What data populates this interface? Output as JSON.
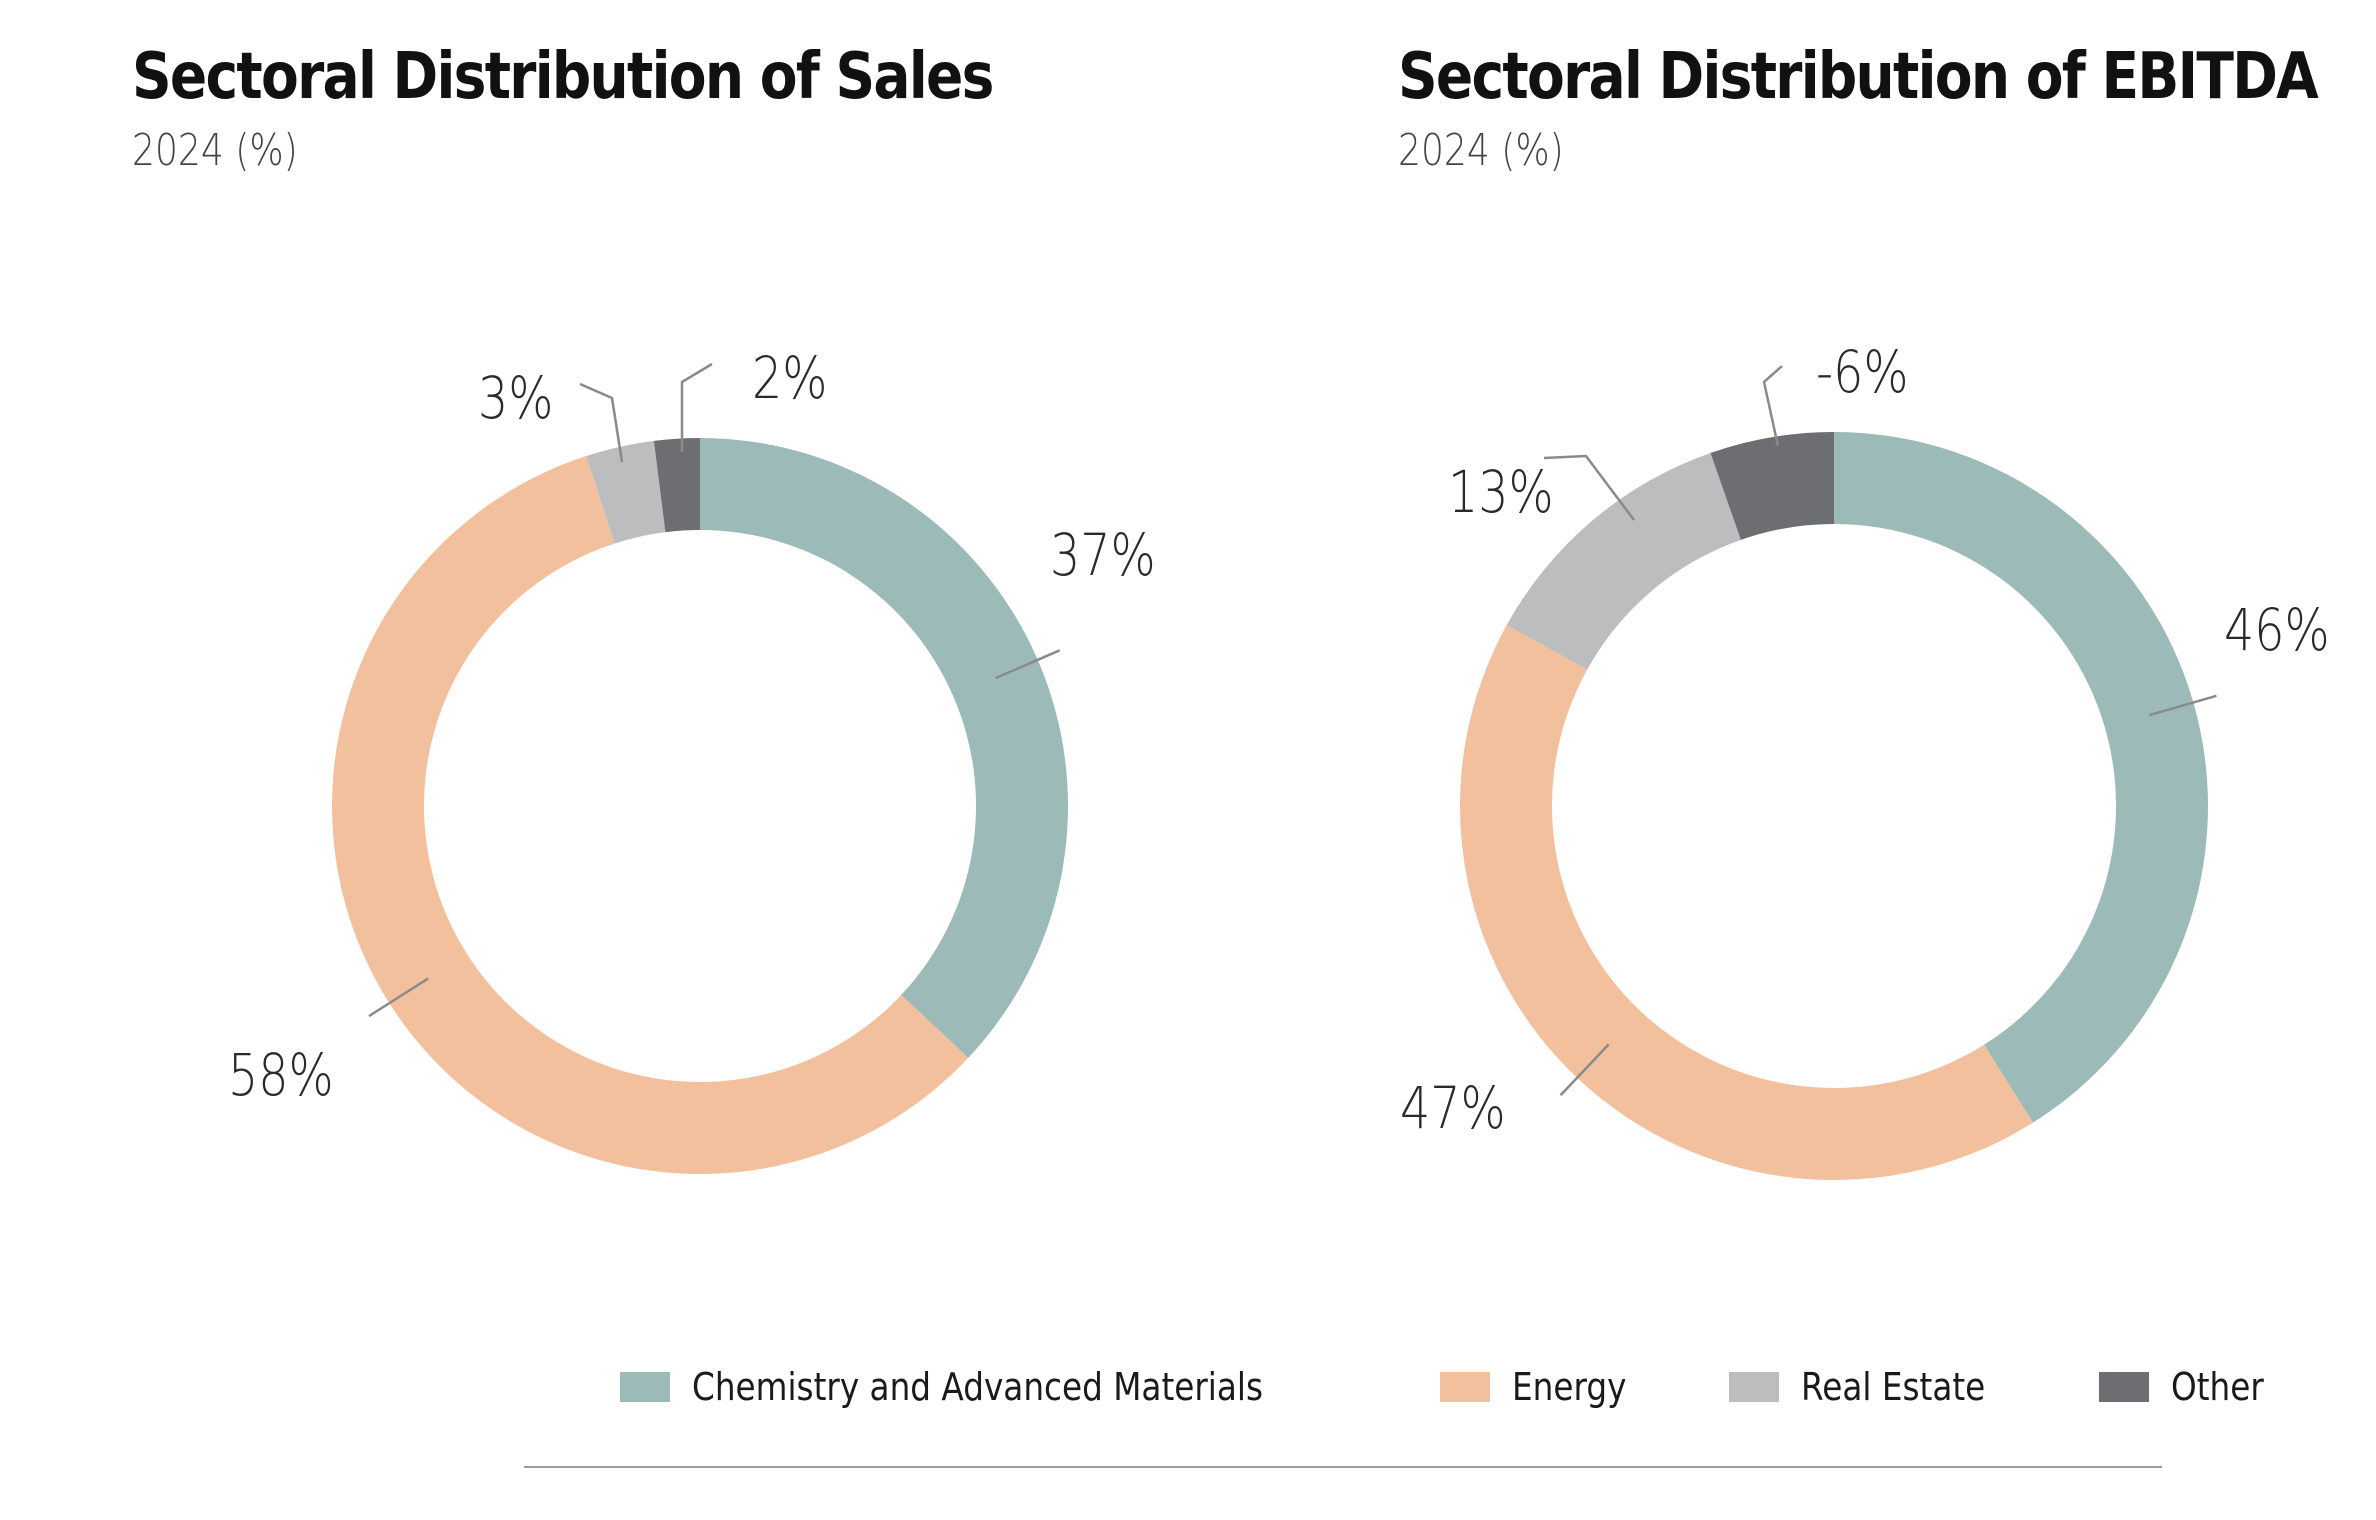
{
  "colors": {
    "Chemistry and Advanced Materials": "#9cbab7",
    "Energy": "#f3c09e",
    "Real Estate": "#bcbdbf",
    "Other": "#6d6e71",
    "leader": "#8a8a8a"
  },
  "chart_data": [
    {
      "type": "pie",
      "style": "donut",
      "title": "Sectoral Distribution of Sales",
      "subtitle": "2024 (%)",
      "categories": [
        "Chemistry and Advanced Materials",
        "Energy",
        "Real Estate",
        "Other"
      ],
      "values": [
        37,
        58,
        3,
        2
      ],
      "labels": [
        "37%",
        "58%",
        "3%",
        "2%"
      ]
    },
    {
      "type": "pie",
      "style": "donut",
      "title": "Sectoral Distribution of EBITDA",
      "subtitle": "2024 (%)",
      "categories": [
        "Chemistry and Advanced Materials",
        "Energy",
        "Real Estate",
        "Other"
      ],
      "values": [
        46,
        47,
        13,
        -6
      ],
      "labels": [
        "46%",
        "47%",
        "13%",
        "-6%"
      ]
    }
  ],
  "legend": [
    {
      "label": "Chemistry and Advanced Materials"
    },
    {
      "label": "Energy"
    },
    {
      "label": "Real Estate"
    },
    {
      "label": "Other"
    }
  ]
}
